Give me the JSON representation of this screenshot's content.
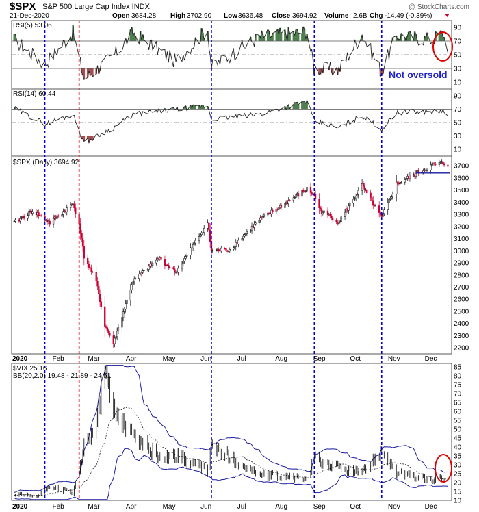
{
  "header": {
    "symbol": "$SPX",
    "name": "S&P 500 Large Cap Index INDX",
    "date": "21-Dec-2020",
    "open_label": "Open",
    "open": "3684.28",
    "high_label": "High",
    "high": "3702.90",
    "low_label": "Low",
    "low": "3636.48",
    "close_label": "Close",
    "close": "3694.92",
    "volume_label": "Volume",
    "volume": "2.6B",
    "chg_label": "Chg",
    "chg": "-14.49 (-0.39%)",
    "watermark": "@ StockCharts.com"
  },
  "annotation": "Not oversold",
  "colors": {
    "up": "#000000",
    "down": "#cc0033",
    "event_line_blue": "#0000cc",
    "event_line_red": "#dd0000",
    "rsi_overbought_fill": "#4f7f4f",
    "rsi_oversold_fill": "#a05050",
    "band": "#1a1aa0",
    "highlight_circle": "#e00000",
    "annotation": "#1e22c8"
  },
  "x_axis": {
    "months": [
      "2020",
      "Feb",
      "Mar",
      "Apr",
      "May",
      "Jun",
      "Jul",
      "Aug",
      "Sep",
      "Oct",
      "Nov",
      "Dec"
    ]
  },
  "event_dates": [
    {
      "date": "2020-01-27",
      "style": "blue"
    },
    {
      "date": "2020-02-24",
      "style": "red"
    },
    {
      "date": "2020-06-11",
      "style": "blue"
    },
    {
      "date": "2020-09-03",
      "style": "blue"
    },
    {
      "date": "2020-10-28",
      "style": "blue"
    }
  ],
  "chart_data": [
    {
      "type": "line",
      "title": "RSI(5) 53.06",
      "indicator": "RSI(5)",
      "last": 53.06,
      "ylim": [
        0,
        100
      ],
      "ticks": [
        90,
        70,
        50,
        30,
        10
      ],
      "levels": {
        "overbought": 70,
        "center": 50,
        "oversold": 30
      },
      "x": [
        "2020-01-02",
        "2020-01-27",
        "2020-02-19",
        "2020-02-28",
        "2020-03-23",
        "2020-04-08",
        "2020-05-13",
        "2020-06-08",
        "2020-06-11",
        "2020-07-20",
        "2020-08-28",
        "2020-09-03",
        "2020-09-23",
        "2020-10-12",
        "2020-10-28",
        "2020-11-09",
        "2020-12-08",
        "2020-12-17",
        "2020-12-21"
      ],
      "y": [
        72,
        36,
        82,
        15,
        48,
        82,
        40,
        88,
        32,
        76,
        84,
        30,
        28,
        80,
        25,
        78,
        72,
        82,
        53
      ]
    },
    {
      "type": "line",
      "title": "RSI(14) 60.44",
      "indicator": "RSI(14)",
      "last": 60.44,
      "ylim": [
        0,
        100
      ],
      "ticks": [
        90,
        70,
        50,
        30,
        10
      ],
      "levels": {
        "overbought": 70,
        "center": 50,
        "oversold": 30
      },
      "x": [
        "2020-01-02",
        "2020-01-27",
        "2020-02-19",
        "2020-02-28",
        "2020-03-23",
        "2020-04-08",
        "2020-06-08",
        "2020-06-11",
        "2020-07-20",
        "2020-08-28",
        "2020-09-03",
        "2020-09-23",
        "2020-10-12",
        "2020-10-28",
        "2020-11-09",
        "2020-12-17",
        "2020-12-21"
      ],
      "y": [
        71,
        48,
        62,
        20,
        42,
        62,
        75,
        55,
        62,
        82,
        52,
        42,
        60,
        40,
        65,
        67,
        60
      ]
    },
    {
      "type": "line",
      "title": "$SPX (Daily) 3694.92",
      "series_name": "$SPX (Daily)",
      "last": 3694.92,
      "ylim": [
        2150,
        3780
      ],
      "ticks": [
        3700,
        3600,
        3500,
        3400,
        3300,
        3200,
        3100,
        3000,
        2900,
        2800,
        2700,
        2600,
        2500,
        2400,
        2300,
        2200
      ],
      "x": [
        "2020-01-02",
        "2020-01-17",
        "2020-01-31",
        "2020-02-19",
        "2020-02-24",
        "2020-02-28",
        "2020-03-09",
        "2020-03-16",
        "2020-03-23",
        "2020-04-08",
        "2020-04-29",
        "2020-05-13",
        "2020-06-08",
        "2020-06-11",
        "2020-06-26",
        "2020-07-20",
        "2020-08-28",
        "2020-09-03",
        "2020-09-08",
        "2020-09-23",
        "2020-10-12",
        "2020-10-28",
        "2020-11-09",
        "2020-12-08",
        "2020-12-17",
        "2020-12-21"
      ],
      "y": [
        3230,
        3330,
        3230,
        3386,
        3225,
        2954,
        2746,
        2386,
        2237,
        2750,
        2939,
        2820,
        3232,
        3000,
        3010,
        3251,
        3508,
        3455,
        3331,
        3237,
        3535,
        3271,
        3550,
        3702,
        3722,
        3695
      ]
    },
    {
      "type": "line",
      "title": "$VIX 25.16",
      "series_name": "$VIX",
      "last": 25.16,
      "legend": "BB(20,2.0) 19.48 - 21.89 - 24.51",
      "ylim": [
        10,
        87
      ],
      "ticks": [
        85,
        80,
        75,
        70,
        65,
        60,
        55,
        50,
        45,
        40,
        35,
        30,
        25,
        20,
        15,
        10
      ],
      "x": [
        "2020-01-02",
        "2020-01-21",
        "2020-01-31",
        "2020-02-19",
        "2020-02-24",
        "2020-02-28",
        "2020-03-09",
        "2020-03-16",
        "2020-03-23",
        "2020-04-08",
        "2020-04-29",
        "2020-05-13",
        "2020-06-08",
        "2020-06-11",
        "2020-07-20",
        "2020-08-28",
        "2020-09-03",
        "2020-09-23",
        "2020-10-12",
        "2020-10-28",
        "2020-11-09",
        "2020-12-08",
        "2020-12-17",
        "2020-12-21"
      ],
      "y": [
        13,
        12,
        18,
        14,
        25,
        40,
        54,
        82,
        61,
        46,
        34,
        35,
        26,
        40,
        24,
        22,
        33,
        28,
        25,
        38,
        25,
        21,
        22,
        25
      ]
    }
  ]
}
